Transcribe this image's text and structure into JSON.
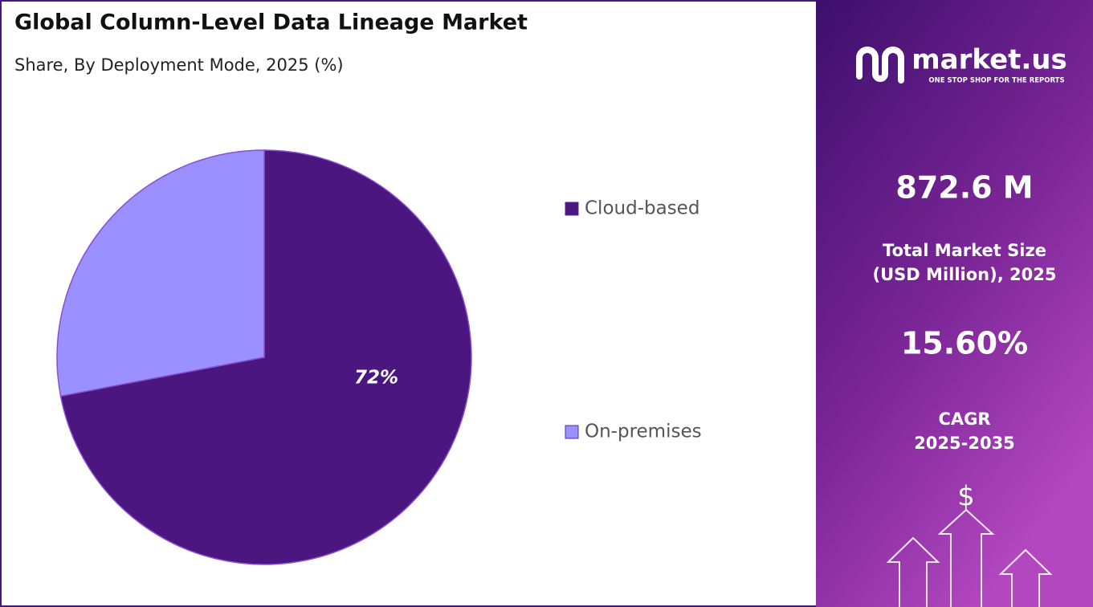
{
  "chart_data": {
    "type": "pie",
    "title": "Global Column-Level Data Lineage Market",
    "subtitle": "Share, By Deployment Mode, 2025 (%)",
    "categories": [
      "Cloud-based",
      "On-premises"
    ],
    "values": [
      72,
      28
    ],
    "value_labels": [
      "72%",
      null
    ],
    "colors": [
      "#4b1680",
      "#9b90ff"
    ],
    "legend": "right"
  },
  "panel": {
    "brand": "market.us",
    "tagline": "ONE STOP SHOP FOR THE REPORTS",
    "market_size": "872.6 M",
    "market_size_label": [
      "Total Market Size",
      "(USD Million), 2025"
    ],
    "cagr": "15.60%",
    "cagr_label": [
      "CAGR",
      "2025-2035"
    ]
  }
}
